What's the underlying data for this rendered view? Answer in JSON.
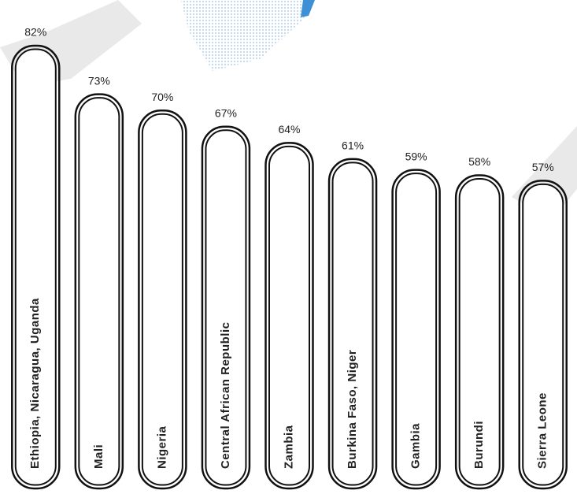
{
  "chart_data": {
    "type": "bar",
    "categories": [
      "Ethiopia, Nicaragua, Uganda",
      "Mali",
      "Nigeria",
      "Central African Republic",
      "Zambia",
      "Burkina Faso, Niger",
      "Gambia",
      "Burundi",
      "Sierra Leone"
    ],
    "values": [
      82,
      73,
      70,
      67,
      64,
      61,
      59,
      58,
      57
    ],
    "value_labels": [
      "82%",
      "73%",
      "70%",
      "67%",
      "64%",
      "61%",
      "59%",
      "58%",
      "57%"
    ],
    "color": "#ffffff"
  }
}
